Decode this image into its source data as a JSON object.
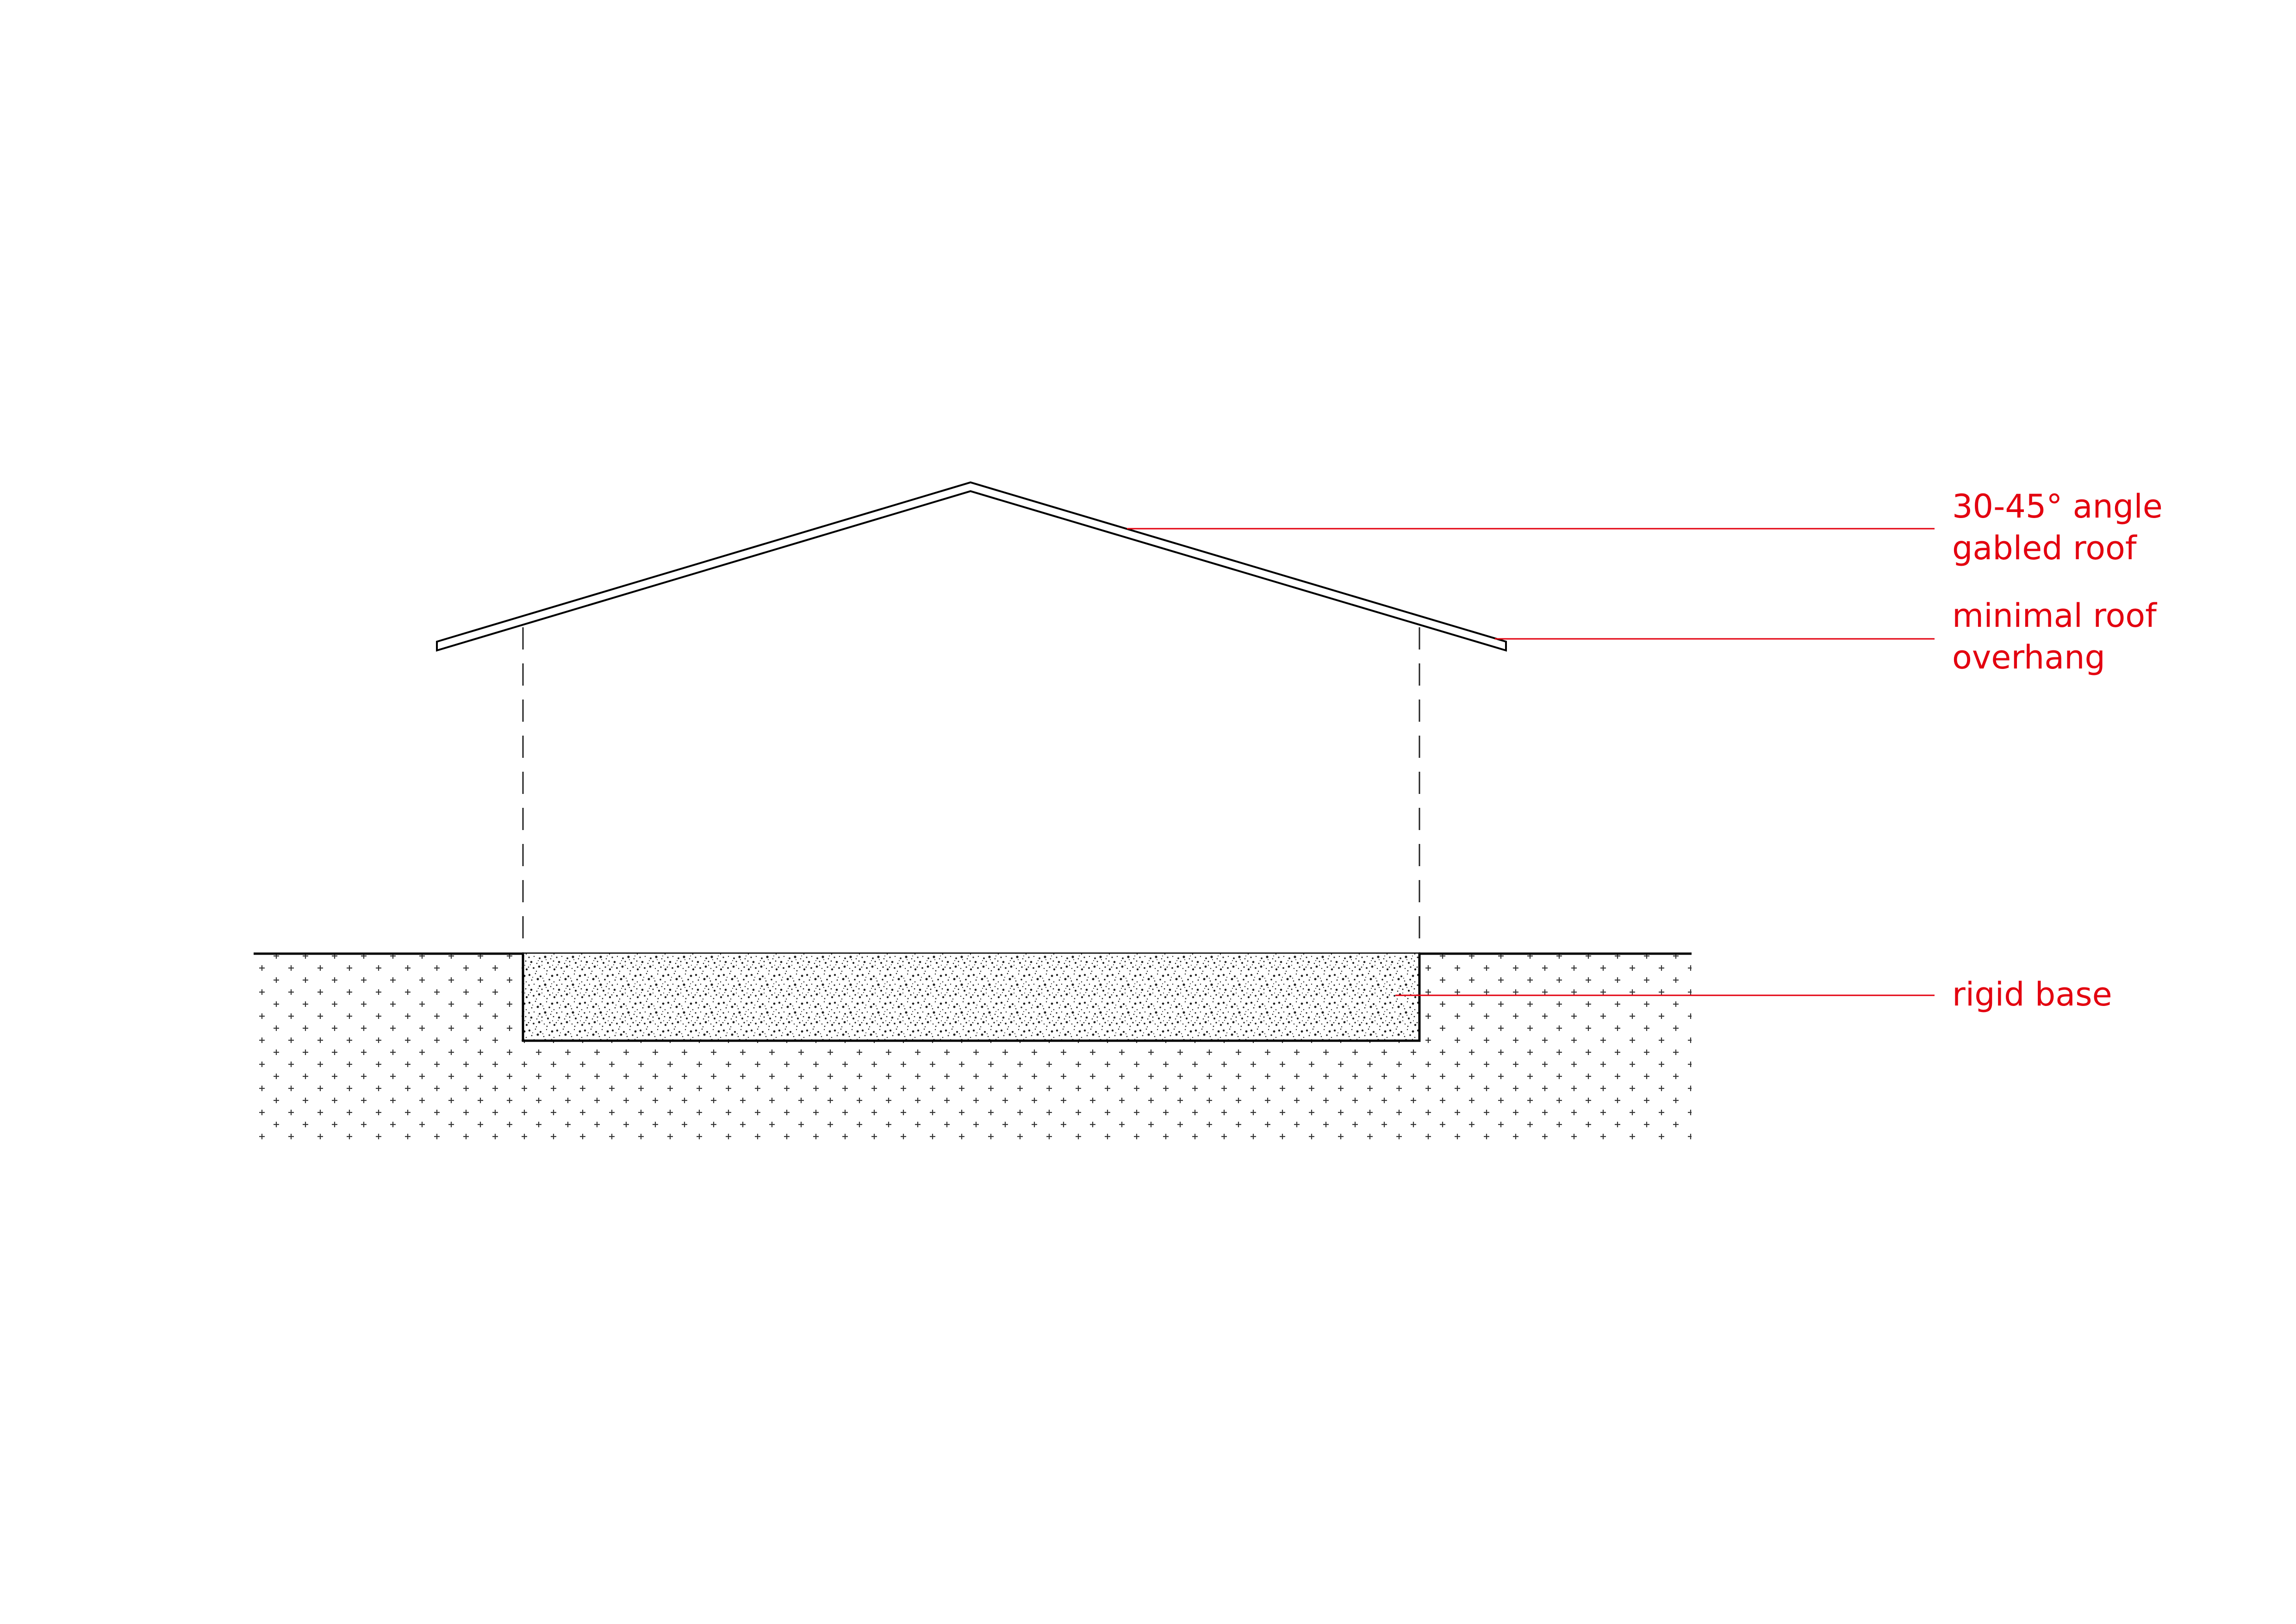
{
  "diagram": {
    "annotations": [
      {
        "id": "roof-angle",
        "lines": [
          "30-45° angle",
          "gabled roof"
        ]
      },
      {
        "id": "roof-overhang",
        "lines": [
          "minimal roof",
          "overhang"
        ]
      },
      {
        "id": "rigid-base",
        "lines": [
          "rigid base"
        ]
      }
    ],
    "colors": {
      "annotation": "#e3000f",
      "linework": "#000000",
      "background": "#ffffff"
    }
  }
}
